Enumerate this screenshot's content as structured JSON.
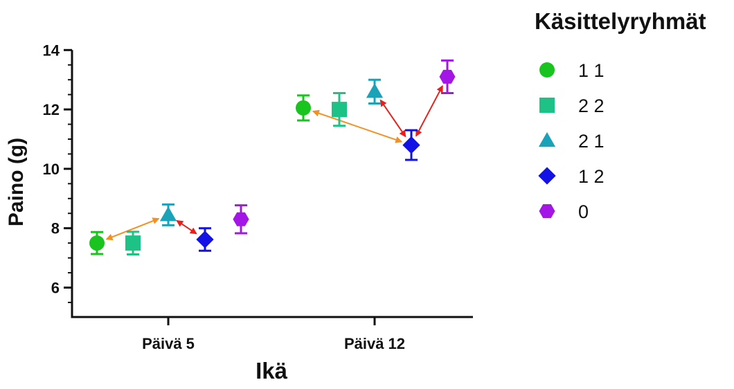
{
  "chart_data": {
    "type": "scatter",
    "xlabel": "Ikä",
    "ylabel": "Paino (g)",
    "categories": [
      "Päivä 5",
      "Päivä 12"
    ],
    "ylim": [
      5,
      14
    ],
    "yticks": [
      6,
      8,
      10,
      12,
      14
    ],
    "grid": false,
    "legend": {
      "title": "Käsittelyryhmät",
      "position": "right"
    },
    "series": [
      {
        "name": "1 1",
        "marker": "circle",
        "color": "#19c41f",
        "values": [
          7.5,
          12.05
        ],
        "errors": [
          0.37,
          0.42
        ]
      },
      {
        "name": "2 2",
        "marker": "square",
        "color": "#1cc286",
        "values": [
          7.5,
          12.0
        ],
        "errors": [
          0.38,
          0.55
        ]
      },
      {
        "name": "2 1",
        "marker": "triangle",
        "color": "#1aa2b8",
        "values": [
          8.45,
          12.6
        ],
        "errors": [
          0.35,
          0.4
        ]
      },
      {
        "name": "1 2",
        "marker": "diamond",
        "color": "#1212e6",
        "values": [
          7.62,
          10.8
        ],
        "errors": [
          0.38,
          0.5
        ]
      },
      {
        "name": "0",
        "marker": "hexagon",
        "color": "#a316e6",
        "values": [
          8.3,
          13.1
        ],
        "errors": [
          0.47,
          0.55
        ]
      }
    ],
    "annotations": [
      {
        "from": {
          "series": "1 1",
          "category": "Päivä 5"
        },
        "to": {
          "series": "2 1",
          "category": "Päivä 5"
        },
        "color": "#f5901e"
      },
      {
        "from": {
          "series": "2 1",
          "category": "Päivä 5"
        },
        "to": {
          "series": "1 2",
          "category": "Päivä 5"
        },
        "color": "#e8201c"
      },
      {
        "from": {
          "series": "1 1",
          "category": "Päivä 12"
        },
        "to": {
          "series": "1 2",
          "category": "Päivä 12"
        },
        "color": "#f5901e"
      },
      {
        "from": {
          "series": "2 1",
          "category": "Päivä 12"
        },
        "to": {
          "series": "1 2",
          "category": "Päivä 12"
        },
        "color": "#e8201c"
      },
      {
        "from": {
          "series": "1 2",
          "category": "Päivä 12"
        },
        "to": {
          "series": "0",
          "category": "Päivä 12"
        },
        "color": "#e8201c"
      }
    ]
  }
}
